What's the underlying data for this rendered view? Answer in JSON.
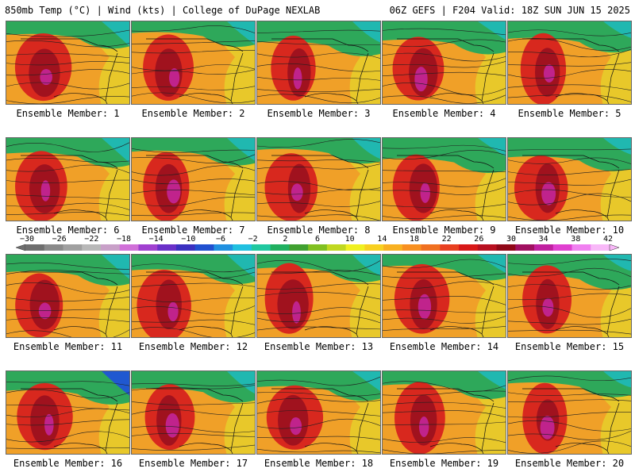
{
  "header": {
    "left_title": "850mb Temp (°C) | Wind (kts) | College of DuPage NEXLAB",
    "right_title": "06Z GEFS | F204 Valid: 18Z SUN JUN 15 2025"
  },
  "panels": [
    {
      "label": "Ensemble Member: 1"
    },
    {
      "label": "Ensemble Member: 2"
    },
    {
      "label": "Ensemble Member: 3"
    },
    {
      "label": "Ensemble Member: 4"
    },
    {
      "label": "Ensemble Member: 5"
    },
    {
      "label": "Ensemble Member: 6"
    },
    {
      "label": "Ensemble Member: 7"
    },
    {
      "label": "Ensemble Member: 8"
    },
    {
      "label": "Ensemble Member: 9"
    },
    {
      "label": "Ensemble Member: 10"
    },
    {
      "label": "Ensemble Member: 11"
    },
    {
      "label": "Ensemble Member: 12"
    },
    {
      "label": "Ensemble Member: 13"
    },
    {
      "label": "Ensemble Member: 14"
    },
    {
      "label": "Ensemble Member: 15"
    },
    {
      "label": "Ensemble Member: 16"
    },
    {
      "label": "Ensemble Member: 17"
    },
    {
      "label": "Ensemble Member: 18"
    },
    {
      "label": "Ensemble Member: 19"
    },
    {
      "label": "Ensemble Member: 20"
    }
  ],
  "colorbar": {
    "tick_labels": [
      "−30",
      "−26",
      "−22",
      "−18",
      "−14",
      "−10",
      "−6",
      "−2",
      "2",
      "6",
      "10",
      "14",
      "18",
      "22",
      "26",
      "30",
      "34",
      "38",
      "42"
    ],
    "colors": [
      "#6e6e6e",
      "#8a8a8a",
      "#a0a0a0",
      "#b8b8b8",
      "#c8a0c8",
      "#d070d8",
      "#a040d0",
      "#6a30c8",
      "#3a30c0",
      "#2050d0",
      "#2090e0",
      "#20c0e0",
      "#20c8a0",
      "#20b060",
      "#40a030",
      "#80c020",
      "#c0d820",
      "#f0f020",
      "#f8d020",
      "#f8b020",
      "#f89020",
      "#f07020",
      "#e84020",
      "#d81818",
      "#b81020",
      "#900818",
      "#a01060",
      "#c020a0",
      "#e040d0",
      "#f080f0",
      "#f8b8f8"
    ]
  }
}
